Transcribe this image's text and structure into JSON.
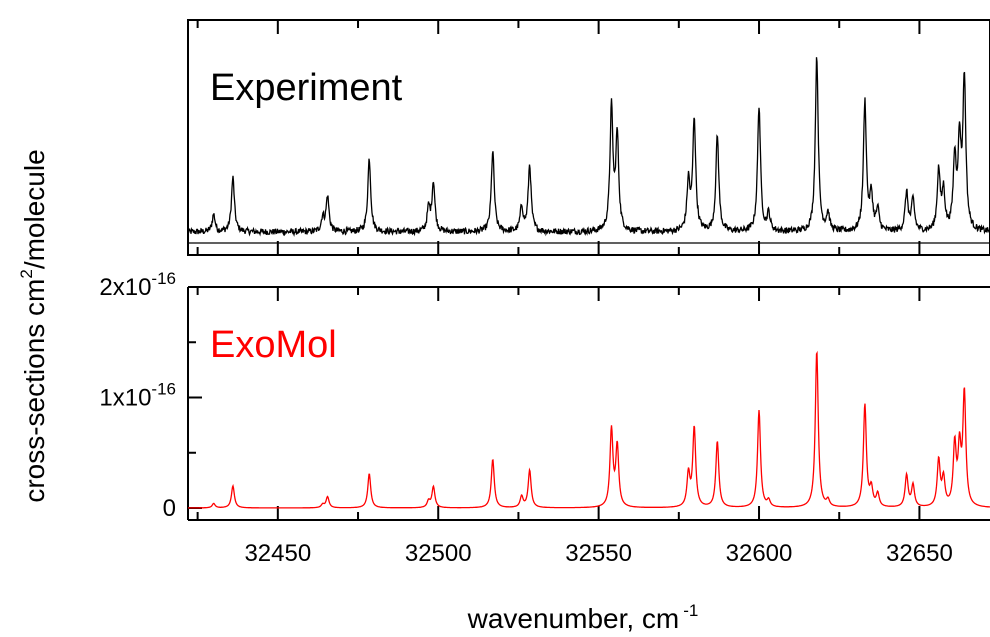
{
  "chart_data": [
    {
      "type": "line",
      "panel": "top",
      "label": "Experiment",
      "label_color": "#000000",
      "line_color": "#000000",
      "y_tick_labels": false,
      "xlim": [
        32422,
        32672
      ],
      "peaks": [
        {
          "x": 32430.0,
          "h": 0.1
        },
        {
          "x": 32436.0,
          "h": 0.31
        },
        {
          "x": 32464.0,
          "h": 0.08
        },
        {
          "x": 32465.5,
          "h": 0.2
        },
        {
          "x": 32478.5,
          "h": 0.42
        },
        {
          "x": 32497.0,
          "h": 0.13
        },
        {
          "x": 32498.5,
          "h": 0.28
        },
        {
          "x": 32517.0,
          "h": 0.46
        },
        {
          "x": 32526.0,
          "h": 0.14
        },
        {
          "x": 32528.5,
          "h": 0.38
        },
        {
          "x": 32554.0,
          "h": 0.7
        },
        {
          "x": 32555.8,
          "h": 0.54
        },
        {
          "x": 32578.0,
          "h": 0.28
        },
        {
          "x": 32579.8,
          "h": 0.64
        },
        {
          "x": 32587.0,
          "h": 0.55
        },
        {
          "x": 32600.0,
          "h": 0.72
        },
        {
          "x": 32603.0,
          "h": 0.1
        },
        {
          "x": 32618.0,
          "h": 1.0
        },
        {
          "x": 32621.5,
          "h": 0.1
        },
        {
          "x": 32633.0,
          "h": 0.74
        },
        {
          "x": 32635.0,
          "h": 0.2
        },
        {
          "x": 32637.0,
          "h": 0.12
        },
        {
          "x": 32646.0,
          "h": 0.22
        },
        {
          "x": 32648.0,
          "h": 0.18
        },
        {
          "x": 32656.0,
          "h": 0.34
        },
        {
          "x": 32657.5,
          "h": 0.22
        },
        {
          "x": 32661.0,
          "h": 0.4
        },
        {
          "x": 32662.5,
          "h": 0.48
        },
        {
          "x": 32664.0,
          "h": 0.86
        }
      ],
      "noise": 0.018
    },
    {
      "type": "line",
      "panel": "bottom",
      "label": "ExoMol",
      "label_color": "#ff0000",
      "line_color": "#ff0000",
      "ylabel": "cross-sections cm",
      "ylabel_sup": "2",
      "ylabel_suffix": "/molecule",
      "y_ticks": [
        {
          "value": 0,
          "base": "0",
          "exp": ""
        },
        {
          "value": 1e-16,
          "base": "1x10",
          "exp": "-16"
        },
        {
          "value": 2e-16,
          "base": "2x10",
          "exp": "-16"
        }
      ],
      "ylim": [
        0,
        2e-16
      ],
      "xlabel": "wavenumber, cm",
      "xlabel_sup": "-1",
      "x_ticks": [
        32450,
        32500,
        32550,
        32600,
        32650
      ],
      "xlim": [
        32422,
        32672
      ],
      "peaks": [
        {
          "x": 32430.0,
          "h": 4e-18
        },
        {
          "x": 32436.0,
          "h": 2e-17
        },
        {
          "x": 32464.0,
          "h": 3e-18
        },
        {
          "x": 32465.5,
          "h": 1e-17
        },
        {
          "x": 32478.5,
          "h": 3.1e-17
        },
        {
          "x": 32497.0,
          "h": 6e-18
        },
        {
          "x": 32498.5,
          "h": 1.9e-17
        },
        {
          "x": 32517.0,
          "h": 4.4e-17
        },
        {
          "x": 32526.0,
          "h": 1e-17
        },
        {
          "x": 32528.5,
          "h": 3.4e-17
        },
        {
          "x": 32554.0,
          "h": 7e-17
        },
        {
          "x": 32555.8,
          "h": 5.5e-17
        },
        {
          "x": 32578.0,
          "h": 3e-17
        },
        {
          "x": 32579.8,
          "h": 7.2e-17
        },
        {
          "x": 32587.0,
          "h": 6e-17
        },
        {
          "x": 32600.0,
          "h": 8.8e-17
        },
        {
          "x": 32603.0,
          "h": 6e-18
        },
        {
          "x": 32618.0,
          "h": 1.42e-16
        },
        {
          "x": 32621.5,
          "h": 6e-18
        },
        {
          "x": 32633.0,
          "h": 9.3e-17
        },
        {
          "x": 32635.0,
          "h": 1.6e-17
        },
        {
          "x": 32637.0,
          "h": 1.2e-17
        },
        {
          "x": 32646.0,
          "h": 2.9e-17
        },
        {
          "x": 32648.0,
          "h": 2e-17
        },
        {
          "x": 32656.0,
          "h": 4.2e-17
        },
        {
          "x": 32657.5,
          "h": 2.5e-17
        },
        {
          "x": 32661.0,
          "h": 5.5e-17
        },
        {
          "x": 32662.5,
          "h": 5e-17
        },
        {
          "x": 32664.0,
          "h": 1.02e-16
        }
      ]
    }
  ]
}
